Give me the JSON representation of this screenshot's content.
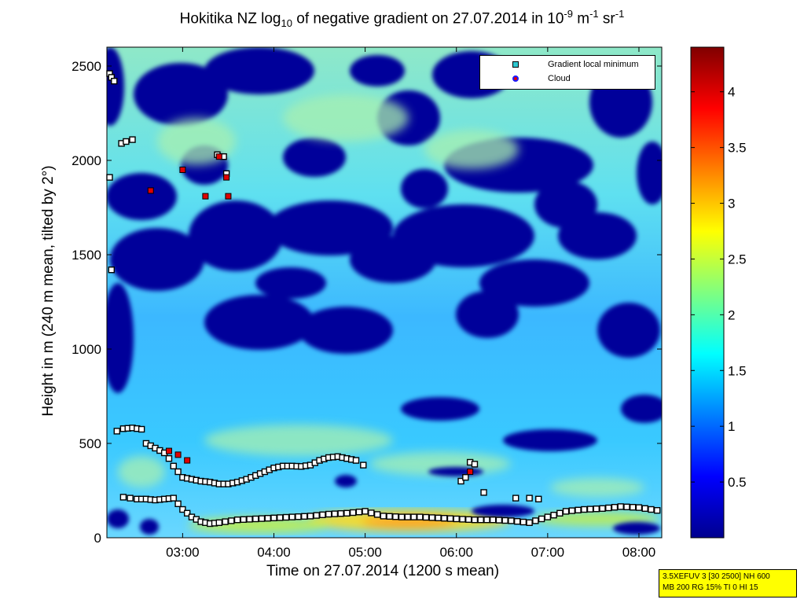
{
  "chart_data": {
    "type": "heatmap",
    "title_parts": {
      "pre": "Hokitika NZ log",
      "sub": "10",
      "mid": " of negative gradient on 27.07.2014 in 10",
      "sup1": "-9",
      "m": " m",
      "sup2": "-1",
      "sr": " sr",
      "sup3": "-1"
    },
    "xlabel": "Time on 27.07.2014 (1200 s mean)",
    "ylabel": "Height in m (240 m mean, tilted by 2°)",
    "xlim": [
      2.17,
      8.25
    ],
    "ylim": [
      0,
      2600
    ],
    "x_ticks": [
      {
        "v": 3,
        "label": "03:00"
      },
      {
        "v": 4,
        "label": "04:00"
      },
      {
        "v": 5,
        "label": "05:00"
      },
      {
        "v": 6,
        "label": "06:00"
      },
      {
        "v": 7,
        "label": "07:00"
      },
      {
        "v": 8,
        "label": "08:00"
      }
    ],
    "y_ticks": [
      {
        "v": 0,
        "label": "0"
      },
      {
        "v": 500,
        "label": "500"
      },
      {
        "v": 1000,
        "label": "1000"
      },
      {
        "v": 1500,
        "label": "1500"
      },
      {
        "v": 2000,
        "label": "2000"
      },
      {
        "v": 2500,
        "label": "2500"
      }
    ],
    "colorbar": {
      "range": [
        0,
        4.4
      ],
      "ticks": [
        {
          "v": 0.5,
          "label": "0.5"
        },
        {
          "v": 1,
          "label": "1"
        },
        {
          "v": 1.5,
          "label": "1.5"
        },
        {
          "v": 2,
          "label": "2"
        },
        {
          "v": 2.5,
          "label": "2.5"
        },
        {
          "v": 3,
          "label": "3"
        },
        {
          "v": 3.5,
          "label": "3.5"
        },
        {
          "v": 4,
          "label": "4"
        }
      ]
    },
    "legend": [
      {
        "label": "Gradient local minimum",
        "marker": "square"
      },
      {
        "label": "Cloud",
        "marker": "circle"
      }
    ],
    "series": [
      {
        "name": "Gradient local minimum (upper layer)",
        "points": [
          [
            2.28,
            565
          ],
          [
            2.35,
            578
          ],
          [
            2.45,
            582
          ],
          [
            2.55,
            575
          ],
          [
            2.6,
            500
          ],
          [
            2.7,
            475
          ],
          [
            2.8,
            450
          ],
          [
            2.85,
            420
          ],
          [
            2.9,
            380
          ],
          [
            2.95,
            350
          ],
          [
            3.0,
            320
          ],
          [
            3.1,
            310
          ],
          [
            3.2,
            300
          ],
          [
            3.3,
            295
          ],
          [
            3.4,
            285
          ],
          [
            3.5,
            285
          ],
          [
            3.6,
            295
          ],
          [
            3.7,
            310
          ],
          [
            3.8,
            330
          ],
          [
            3.9,
            350
          ],
          [
            4.0,
            370
          ],
          [
            4.1,
            380
          ],
          [
            4.2,
            380
          ],
          [
            4.3,
            378
          ],
          [
            4.4,
            385
          ],
          [
            4.5,
            410
          ],
          [
            4.6,
            425
          ],
          [
            4.7,
            430
          ],
          [
            4.8,
            420
          ],
          [
            4.9,
            410
          ],
          [
            4.98,
            385
          ]
        ]
      },
      {
        "name": "Gradient local minimum (boundary layer)",
        "points": [
          [
            2.35,
            215
          ],
          [
            2.5,
            205
          ],
          [
            2.6,
            205
          ],
          [
            2.7,
            200
          ],
          [
            2.8,
            205
          ],
          [
            2.9,
            210
          ],
          [
            3.0,
            150
          ],
          [
            3.1,
            110
          ],
          [
            3.2,
            85
          ],
          [
            3.3,
            75
          ],
          [
            3.4,
            80
          ],
          [
            3.6,
            95
          ],
          [
            3.8,
            100
          ],
          [
            4.0,
            105
          ],
          [
            4.2,
            110
          ],
          [
            4.4,
            115
          ],
          [
            4.6,
            125
          ],
          [
            4.8,
            130
          ],
          [
            5.0,
            140
          ],
          [
            5.2,
            115
          ],
          [
            5.4,
            110
          ],
          [
            5.6,
            110
          ],
          [
            5.8,
            105
          ],
          [
            6.0,
            100
          ],
          [
            6.2,
            95
          ],
          [
            6.4,
            95
          ],
          [
            6.6,
            90
          ],
          [
            6.8,
            80
          ],
          [
            7.0,
            110
          ],
          [
            7.2,
            140
          ],
          [
            7.4,
            150
          ],
          [
            7.6,
            155
          ],
          [
            7.8,
            165
          ],
          [
            8.0,
            160
          ],
          [
            8.2,
            145
          ]
        ]
      },
      {
        "name": "Gradient local minimum (high)",
        "points": [
          [
            2.2,
            2460
          ],
          [
            2.22,
            2440
          ],
          [
            2.25,
            2420
          ],
          [
            2.33,
            2090
          ],
          [
            2.38,
            2100
          ],
          [
            2.45,
            2110
          ],
          [
            2.2,
            1910
          ],
          [
            2.22,
            1420
          ],
          [
            3.38,
            2030
          ],
          [
            3.45,
            2020
          ],
          [
            3.48,
            1930
          ],
          [
            6.05,
            300
          ],
          [
            6.1,
            320
          ],
          [
            6.15,
            400
          ],
          [
            6.2,
            390
          ],
          [
            6.3,
            240
          ],
          [
            6.65,
            210
          ],
          [
            6.8,
            210
          ],
          [
            6.9,
            205
          ]
        ]
      },
      {
        "name": "Cloud",
        "points": [
          [
            2.65,
            1840
          ],
          [
            3.0,
            1950
          ],
          [
            3.25,
            1810
          ],
          [
            3.4,
            2020
          ],
          [
            3.48,
            1910
          ],
          [
            3.5,
            1810
          ],
          [
            2.85,
            460
          ],
          [
            2.95,
            440
          ],
          [
            3.05,
            410
          ],
          [
            6.15,
            350
          ]
        ]
      }
    ]
  },
  "info_box": {
    "line1": "3.5XEFUV 3 [30 2500] NH 600",
    "line2": "MB 200 RG 15% TI 0 HI 15"
  }
}
